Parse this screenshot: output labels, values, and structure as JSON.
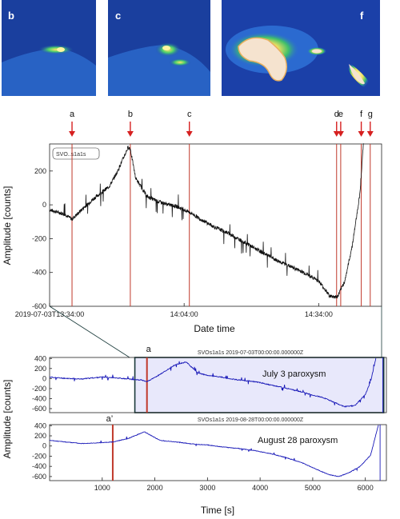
{
  "thumbnails": [
    {
      "label": "b"
    },
    {
      "label": "c"
    },
    {
      "label": "f"
    }
  ],
  "colors": {
    "signal_black": "#111111",
    "signal_blue": "#1a1ab8",
    "event_line": "#c0392b",
    "arrow": "#d62020",
    "highlight_fill": "#e8e8fb",
    "highlight_stroke": "#1a3a3a"
  },
  "chart_data": [
    {
      "type": "line",
      "title": "",
      "station_label": "SVO..s1a1s",
      "xlabel": "Date time",
      "ylabel": "Amplitude [counts]",
      "ylim": [
        -600,
        360
      ],
      "yticks": [
        200,
        0,
        -200,
        -400,
        -600
      ],
      "x_start": "2019-07-03T13:34:00",
      "xlim_seconds": [
        0,
        4260
      ],
      "xticks": [
        {
          "s": 0,
          "label": "2019-07-03T13:34:00"
        },
        {
          "s": 1800,
          "label": "14:04:00"
        },
        {
          "s": 3600,
          "label": "14:34:00"
        }
      ],
      "events": [
        {
          "label": "a",
          "s": 300
        },
        {
          "label": "b",
          "s": 1080
        },
        {
          "label": "c",
          "s": 1870
        },
        {
          "label": "d",
          "s": 3840
        },
        {
          "label": "e",
          "s": 3895
        },
        {
          "label": "f",
          "s": 4170
        },
        {
          "label": "g",
          "s": 4290
        }
      ],
      "series": [
        {
          "x": [
            0,
            200,
            300,
            450,
            600,
            800,
            900,
            1000,
            1050,
            1080,
            1150,
            1300,
            1450,
            1600,
            1700,
            1800,
            1900,
            2000,
            2200,
            2400,
            2600,
            2800,
            3000,
            3200,
            3400,
            3600,
            3750,
            3850,
            3950,
            4050,
            4150,
            4200
          ],
          "y": [
            -30,
            -55,
            -85,
            -20,
            40,
            110,
            190,
            290,
            340,
            330,
            160,
            50,
            20,
            0,
            -10,
            -30,
            -50,
            -80,
            -130,
            -170,
            -220,
            -270,
            -320,
            -360,
            -400,
            -450,
            -540,
            -545,
            -450,
            -240,
            60,
            370
          ]
        }
      ]
    },
    {
      "type": "line",
      "title": "SVOs1a1s 2019-07-03T00:00:00.000000Z",
      "annotation": "July 3 paroxysm",
      "event_label": "a",
      "event_x": 1850,
      "xlim": [
        0,
        6400
      ],
      "ylim": [
        -680,
        420
      ],
      "yticks": [
        400,
        200,
        0,
        -200,
        -400,
        -600
      ],
      "highlight_range": [
        1620,
        6350
      ],
      "series": [
        {
          "x": [
            0,
            200,
            400,
            600,
            800,
            1000,
            1200,
            1400,
            1600,
            1750,
            1850,
            2000,
            2200,
            2400,
            2600,
            2800,
            3000,
            3200,
            3400,
            3600,
            3800,
            4000,
            4200,
            4400,
            4600,
            4800,
            5000,
            5200,
            5400,
            5600,
            5800,
            6000,
            6100,
            6200
          ],
          "y": [
            30,
            10,
            0,
            -10,
            10,
            30,
            20,
            0,
            -20,
            -30,
            -60,
            20,
            150,
            280,
            330,
            120,
            60,
            40,
            0,
            -30,
            -50,
            -80,
            -130,
            -170,
            -220,
            -270,
            -330,
            -380,
            -470,
            -560,
            -540,
            -320,
            -60,
            400
          ]
        }
      ]
    },
    {
      "type": "line",
      "title": "SVOs1a1s 2019-08-28T00:00:00.000000Z",
      "annotation": "August 28 paroxysm",
      "event_label": "a’",
      "event_x": 1200,
      "xlabel": "Time [s]",
      "ylabel": "Amplitude [counts]",
      "xlim": [
        0,
        6400
      ],
      "ylim": [
        -680,
        420
      ],
      "yticks": [
        400,
        200,
        0,
        -200,
        -400,
        -600
      ],
      "xticks": [
        1000,
        2000,
        3000,
        4000,
        5000,
        6000
      ],
      "series": [
        {
          "x": [
            0,
            300,
            600,
            900,
            1200,
            1500,
            1800,
            2100,
            2400,
            2700,
            3000,
            3300,
            3600,
            3900,
            4200,
            4500,
            4800,
            5100,
            5300,
            5500,
            5700,
            5900,
            6100,
            6250
          ],
          "y": [
            110,
            80,
            50,
            60,
            80,
            150,
            280,
            110,
            80,
            40,
            20,
            -20,
            -50,
            -90,
            -150,
            -230,
            -330,
            -470,
            -560,
            -600,
            -520,
            -400,
            -180,
            420
          ]
        }
      ]
    }
  ]
}
